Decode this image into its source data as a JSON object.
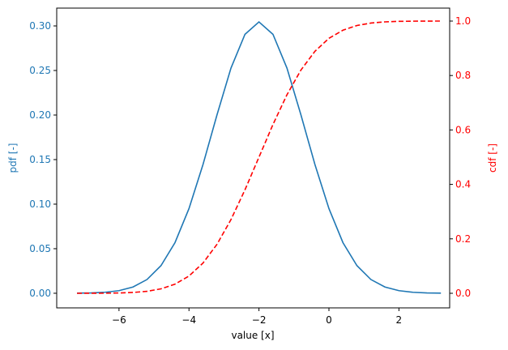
{
  "chart_data": {
    "type": "line",
    "x_label": "value [x]",
    "y_label": "pdf [-]",
    "y2_label": "cdf [-]",
    "x": [
      -7.2,
      -6.8,
      -6.4,
      -6.0,
      -5.6,
      -5.2,
      -4.8,
      -4.4,
      -4.0,
      -3.6,
      -3.2,
      -2.8,
      -2.4,
      -2.0,
      -1.6,
      -1.2,
      -0.8,
      -0.4,
      0.0,
      0.4,
      0.8,
      1.2,
      1.6,
      2.0,
      2.4,
      2.8,
      3.2
    ],
    "series": [
      {
        "name": "pdf",
        "color": "#1f77b4",
        "dash": false,
        "axis": "y",
        "values": [
          0.0001,
          0.0004,
          0.0011,
          0.0029,
          0.007,
          0.0154,
          0.031,
          0.0568,
          0.095,
          0.1444,
          0.2001,
          0.2527,
          0.2906,
          0.3045,
          0.2906,
          0.2527,
          0.2001,
          0.1444,
          0.095,
          0.0568,
          0.031,
          0.0154,
          0.007,
          0.0029,
          0.0011,
          0.0004,
          0.0001
        ]
      },
      {
        "name": "cdf",
        "color": "#ff0000",
        "dash": true,
        "axis": "y2",
        "values": [
          0.0,
          0.0001,
          0.0004,
          0.0011,
          0.003,
          0.0073,
          0.0163,
          0.0335,
          0.0634,
          0.111,
          0.1798,
          0.2707,
          0.3801,
          0.5,
          0.6199,
          0.7293,
          0.8202,
          0.889,
          0.9366,
          0.9665,
          0.9837,
          0.9927,
          0.997,
          0.9989,
          0.9996,
          0.9999,
          1.0
        ]
      }
    ],
    "xlim": [
      -7.78,
      3.45
    ],
    "xticks": [
      {
        "value": -6,
        "label": "−6"
      },
      {
        "value": -4,
        "label": "−4"
      },
      {
        "value": -2,
        "label": "−2"
      },
      0,
      2
    ],
    "ylim": [
      -0.0164,
      0.32
    ],
    "yticks": [
      {
        "value": 0,
        "label": "0.00"
      },
      {
        "value": 0.05,
        "label": "0.05"
      },
      {
        "value": 0.1,
        "label": "0.10"
      },
      {
        "value": 0.15,
        "label": "0.15"
      },
      {
        "value": 0.2,
        "label": "0.20"
      },
      {
        "value": 0.25,
        "label": "0.25"
      },
      {
        "value": 0.3,
        "label": "0.30"
      }
    ],
    "y2lim": [
      -0.0536,
      1.0476
    ],
    "y2ticks": [
      {
        "value": 0,
        "label": "0.0"
      },
      {
        "value": 0.2,
        "label": "0.2"
      },
      {
        "value": 0.4,
        "label": "0.4"
      },
      {
        "value": 0.6,
        "label": "0.6"
      },
      {
        "value": 0.8,
        "label": "0.8"
      },
      {
        "value": 1,
        "label": "1.0"
      }
    ],
    "grid": false
  }
}
